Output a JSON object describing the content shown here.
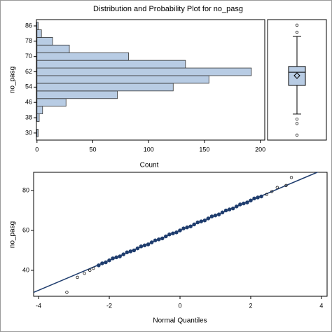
{
  "title": "Distribution and Probability Plot for no_pasg",
  "chart_data": [
    {
      "type": "histogram",
      "orientation": "horizontal",
      "ylabel": "no_pasg",
      "xlabel": "Count",
      "color": "#b8cce4",
      "bins": [
        28,
        32,
        36,
        40,
        44,
        48,
        52,
        56,
        60,
        64,
        68,
        72,
        76,
        80,
        84,
        88
      ],
      "counts": [
        1,
        0,
        2,
        5,
        26,
        72,
        122,
        154,
        192,
        133,
        82,
        29,
        14,
        4,
        1
      ],
      "ylim": [
        26.3,
        89.3
      ],
      "yticks": [
        30,
        38,
        46,
        54,
        62,
        70,
        78,
        86
      ],
      "xlim": [
        -0.5,
        204
      ],
      "xticks": [
        0,
        50,
        100,
        150,
        200
      ]
    },
    {
      "type": "box",
      "color": "#b8cce4",
      "ylim": [
        26.3,
        89.3
      ],
      "whisker_low": 39.9,
      "q1": 54.9,
      "median": 61.8,
      "q3": 64.8,
      "whisker_high": 80.5,
      "mean": 60,
      "outliers": [
        28.9,
        35,
        37.3,
        82.7,
        86.4
      ]
    },
    {
      "type": "qq",
      "xlabel": "Normal Quantiles",
      "ylabel": "no_pasg",
      "color": "#1f3d6e",
      "x": [
        -3.2,
        -2.9,
        -2.7,
        -2.55,
        -2.45,
        -2.3,
        -2.2,
        -2.1,
        -2.0,
        -1.9,
        -1.8,
        -1.7,
        -1.6,
        -1.5,
        -1.4,
        -1.3,
        -1.2,
        -1.1,
        -1.0,
        -0.9,
        -0.8,
        -0.7,
        -0.6,
        -0.5,
        -0.4,
        -0.3,
        -0.2,
        -0.1,
        0,
        0.1,
        0.2,
        0.3,
        0.4,
        0.5,
        0.6,
        0.7,
        0.8,
        0.9,
        1.0,
        1.1,
        1.2,
        1.3,
        1.4,
        1.5,
        1.6,
        1.7,
        1.8,
        1.9,
        2.0,
        2.1,
        2.2,
        2.3,
        2.45,
        2.6,
        2.75,
        3.0,
        3.15
      ],
      "values": [
        29,
        36.5,
        38.5,
        40,
        41,
        42.5,
        43.5,
        44,
        45,
        46,
        46.5,
        47,
        48,
        49,
        49.5,
        50,
        51,
        52,
        52.5,
        53,
        54,
        55,
        55.5,
        56,
        57,
        58,
        58.5,
        59,
        60,
        61,
        61.5,
        62,
        63,
        64,
        64.5,
        65,
        66,
        67,
        67.5,
        68,
        69,
        70,
        70.5,
        71,
        72,
        73,
        73.5,
        74,
        75,
        76,
        76.5,
        77,
        78,
        79.5,
        81.5,
        82.5,
        86.5
      ],
      "reference_line": {
        "mean": 60,
        "sd": 7.5
      },
      "xlim": [
        -4.14,
        4.16
      ],
      "xticks": [
        -4,
        -2,
        0,
        2,
        4
      ],
      "ylim": [
        27.0,
        89.1
      ],
      "yticks": [
        40,
        60,
        80
      ]
    }
  ]
}
